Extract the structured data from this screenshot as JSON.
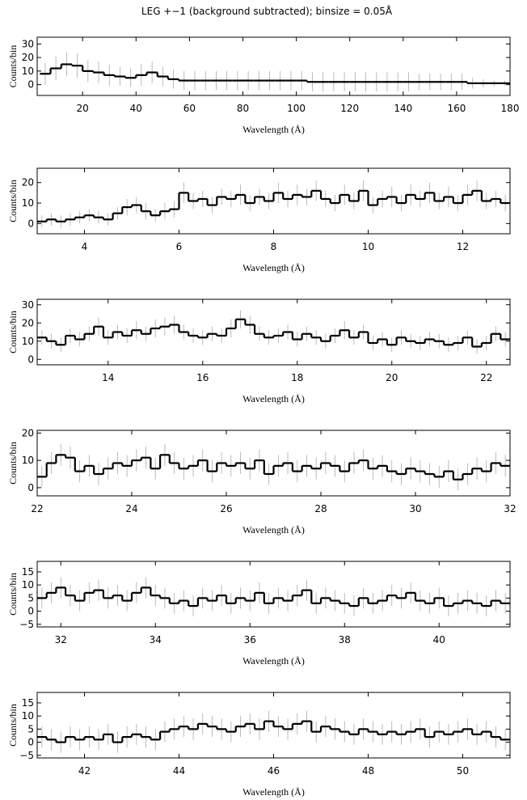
{
  "chart_data": [
    {
      "type": "histogram",
      "title": "LEG +−1 (background subtracted); binsize = 0.05Å",
      "xlabel": "Wavelength (Å)",
      "ylabel": "Counts/bin",
      "xlim": [
        3,
        180
      ],
      "ylim": [
        -8,
        35
      ],
      "xticks": [
        20,
        40,
        60,
        80,
        100,
        120,
        140,
        160,
        180
      ],
      "yticks": [
        0,
        10,
        20,
        30
      ],
      "bins": [
        4,
        8,
        12,
        16,
        20,
        24,
        28,
        32,
        36,
        40,
        44,
        48,
        52,
        56,
        60,
        64,
        68,
        72,
        76,
        80,
        84,
        88,
        92,
        96,
        100,
        104,
        108,
        112,
        116,
        120,
        124,
        128,
        132,
        136,
        140,
        144,
        148,
        152,
        156,
        160,
        164,
        168,
        172,
        176,
        180
      ],
      "values": [
        8,
        12,
        15,
        14,
        10,
        9,
        7,
        6,
        5,
        7,
        9,
        6,
        4,
        3,
        3,
        3,
        3,
        3,
        3,
        3,
        3,
        3,
        3,
        3,
        3,
        2,
        2,
        2,
        2,
        2,
        2,
        2,
        2,
        2,
        2,
        2,
        2,
        2,
        2,
        2,
        1,
        1,
        1,
        1
      ],
      "errors": [
        8,
        9,
        9,
        9,
        8,
        8,
        8,
        7,
        7,
        8,
        8,
        7,
        7,
        7,
        7,
        7,
        7,
        7,
        7,
        7,
        7,
        7,
        7,
        7,
        7,
        7,
        7,
        7,
        7,
        7,
        7,
        7,
        7,
        7,
        7,
        6,
        6,
        6,
        6,
        6,
        4,
        3,
        2,
        2
      ]
    },
    {
      "type": "histogram",
      "xlabel": "Wavelength (Å)",
      "ylabel": "Counts/bin",
      "xlim": [
        3,
        13
      ],
      "ylim": [
        -5,
        27
      ],
      "xticks": [
        4,
        6,
        8,
        10,
        12
      ],
      "yticks": [
        0,
        10,
        20
      ],
      "bins": [
        3,
        3.2,
        3.4,
        3.6,
        3.8,
        4,
        4.2,
        4.4,
        4.6,
        4.8,
        5,
        5.2,
        5.4,
        5.6,
        5.8,
        6,
        6.2,
        6.4,
        6.6,
        6.8,
        7,
        7.2,
        7.4,
        7.6,
        7.8,
        8,
        8.2,
        8.4,
        8.6,
        8.8,
        9,
        9.2,
        9.4,
        9.6,
        9.8,
        10,
        10.2,
        10.4,
        10.6,
        10.8,
        11,
        11.2,
        11.4,
        11.6,
        11.8,
        12,
        12.2,
        12.4,
        12.6,
        12.8,
        13
      ],
      "values": [
        1,
        2,
        1,
        2,
        3,
        4,
        3,
        2,
        5,
        8,
        9,
        6,
        4,
        6,
        7,
        15,
        11,
        12,
        9,
        13,
        12,
        14,
        10,
        13,
        11,
        15,
        12,
        14,
        13,
        16,
        12,
        10,
        14,
        11,
        16,
        9,
        12,
        13,
        10,
        14,
        12,
        15,
        11,
        13,
        10,
        14,
        16,
        11,
        12,
        10
      ],
      "errors": [
        3,
        3,
        3,
        3,
        3,
        3,
        3,
        3,
        3,
        4,
        4,
        4,
        3,
        4,
        4,
        5,
        4,
        4,
        4,
        4,
        4,
        5,
        4,
        4,
        4,
        5,
        4,
        5,
        4,
        5,
        4,
        4,
        5,
        4,
        5,
        4,
        4,
        5,
        4,
        5,
        4,
        5,
        4,
        5,
        4,
        5,
        5,
        4,
        4,
        4
      ]
    },
    {
      "type": "histogram",
      "xlabel": "Wavelength (Å)",
      "ylabel": "Counts/bin",
      "xlim": [
        12.5,
        22.5
      ],
      "ylim": [
        -3,
        33
      ],
      "xticks": [
        14,
        16,
        18,
        20,
        22
      ],
      "yticks": [
        0,
        10,
        20,
        30
      ],
      "bins": [
        12.5,
        12.7,
        12.9,
        13.1,
        13.3,
        13.5,
        13.7,
        13.9,
        14.1,
        14.3,
        14.5,
        14.7,
        14.9,
        15.1,
        15.3,
        15.5,
        15.7,
        15.9,
        16.1,
        16.3,
        16.5,
        16.7,
        16.9,
        17.1,
        17.3,
        17.5,
        17.7,
        17.9,
        18.1,
        18.3,
        18.5,
        18.7,
        18.9,
        19.1,
        19.3,
        19.5,
        19.7,
        19.9,
        20.1,
        20.3,
        20.5,
        20.7,
        20.9,
        21.1,
        21.3,
        21.5,
        21.7,
        21.9,
        22.1,
        22.3,
        22.5
      ],
      "values": [
        12,
        10,
        8,
        13,
        11,
        14,
        18,
        12,
        15,
        13,
        16,
        14,
        17,
        18,
        19,
        15,
        13,
        12,
        14,
        13,
        17,
        22,
        19,
        14,
        12,
        13,
        15,
        11,
        14,
        12,
        10,
        13,
        16,
        12,
        15,
        9,
        11,
        8,
        12,
        10,
        9,
        11,
        10,
        8,
        9,
        12,
        7,
        9,
        14,
        11
      ],
      "errors": [
        4,
        4,
        4,
        4,
        4,
        4,
        5,
        4,
        4,
        4,
        5,
        4,
        5,
        5,
        5,
        4,
        4,
        4,
        4,
        4,
        5,
        5,
        5,
        4,
        4,
        4,
        4,
        4,
        4,
        4,
        4,
        4,
        5,
        4,
        4,
        4,
        4,
        4,
        4,
        4,
        4,
        4,
        4,
        4,
        4,
        4,
        4,
        4,
        4,
        4
      ]
    },
    {
      "type": "histogram",
      "xlabel": "Wavelength (Å)",
      "ylabel": "Counts/bin",
      "xlim": [
        22,
        32
      ],
      "ylim": [
        -3,
        21
      ],
      "xticks": [
        22,
        24,
        26,
        28,
        30,
        32
      ],
      "yticks": [
        0,
        10,
        20
      ],
      "bins": [
        22,
        22.2,
        22.4,
        22.6,
        22.8,
        23,
        23.2,
        23.4,
        23.6,
        23.8,
        24,
        24.2,
        24.4,
        24.6,
        24.8,
        25,
        25.2,
        25.4,
        25.6,
        25.8,
        26,
        26.2,
        26.4,
        26.6,
        26.8,
        27,
        27.2,
        27.4,
        27.6,
        27.8,
        28,
        28.2,
        28.4,
        28.6,
        28.8,
        29,
        29.2,
        29.4,
        29.6,
        29.8,
        30,
        30.2,
        30.4,
        30.6,
        30.8,
        31,
        31.2,
        31.4,
        31.6,
        31.8,
        32
      ],
      "values": [
        4,
        9,
        12,
        11,
        6,
        8,
        5,
        7,
        9,
        8,
        10,
        11,
        7,
        12,
        9,
        7,
        8,
        10,
        6,
        9,
        8,
        9,
        7,
        10,
        5,
        8,
        9,
        6,
        8,
        7,
        9,
        8,
        6,
        9,
        10,
        7,
        8,
        6,
        5,
        7,
        6,
        5,
        4,
        6,
        3,
        5,
        7,
        6,
        9,
        8
      ],
      "errors": [
        4,
        4,
        4,
        4,
        4,
        4,
        4,
        4,
        4,
        4,
        4,
        4,
        4,
        4,
        4,
        4,
        4,
        4,
        4,
        4,
        4,
        4,
        4,
        4,
        4,
        4,
        4,
        4,
        4,
        4,
        4,
        4,
        4,
        4,
        4,
        4,
        4,
        4,
        4,
        4,
        4,
        4,
        4,
        4,
        4,
        4,
        4,
        4,
        4,
        4
      ]
    },
    {
      "type": "histogram",
      "xlabel": "Wavelength (Å)",
      "ylabel": "Counts/bin",
      "xlim": [
        31.5,
        41.5
      ],
      "ylim": [
        -6,
        19
      ],
      "xticks": [
        32,
        34,
        36,
        38,
        40
      ],
      "yticks": [
        {
          "value": -5,
          "label": "−5"
        },
        0,
        5,
        10,
        15
      ],
      "bins": [
        31.5,
        31.7,
        31.9,
        32.1,
        32.3,
        32.5,
        32.7,
        32.9,
        33.1,
        33.3,
        33.5,
        33.7,
        33.9,
        34.1,
        34.3,
        34.5,
        34.7,
        34.9,
        35.1,
        35.3,
        35.5,
        35.7,
        35.9,
        36.1,
        36.3,
        36.5,
        36.7,
        36.9,
        37.1,
        37.3,
        37.5,
        37.7,
        37.9,
        38.1,
        38.3,
        38.5,
        38.7,
        38.9,
        39.1,
        39.3,
        39.5,
        39.7,
        39.9,
        40.1,
        40.3,
        40.5,
        40.7,
        40.9,
        41.1,
        41.3,
        41.5
      ],
      "values": [
        5,
        7,
        9,
        6,
        4,
        7,
        8,
        5,
        6,
        4,
        7,
        9,
        6,
        5,
        3,
        4,
        2,
        5,
        4,
        6,
        3,
        5,
        4,
        7,
        3,
        5,
        4,
        6,
        8,
        3,
        5,
        4,
        3,
        2,
        5,
        3,
        4,
        6,
        5,
        7,
        4,
        3,
        5,
        2,
        3,
        4,
        3,
        2,
        4,
        3
      ],
      "errors": [
        4,
        4,
        4,
        4,
        4,
        4,
        4,
        4,
        4,
        4,
        4,
        4,
        4,
        4,
        4,
        4,
        4,
        4,
        4,
        4,
        4,
        4,
        4,
        4,
        4,
        4,
        4,
        4,
        4,
        4,
        4,
        4,
        4,
        4,
        4,
        4,
        4,
        4,
        4,
        4,
        4,
        4,
        4,
        4,
        4,
        4,
        4,
        4,
        4,
        4
      ]
    },
    {
      "type": "histogram",
      "xlabel": "Wavelength (Å)",
      "ylabel": "Counts/bin",
      "xlim": [
        41,
        51
      ],
      "ylim": [
        -6,
        19
      ],
      "xticks": [
        42,
        44,
        46,
        48,
        50
      ],
      "yticks": [
        {
          "value": -5,
          "label": "−5"
        },
        0,
        5,
        10,
        15
      ],
      "bins": [
        41,
        41.2,
        41.4,
        41.6,
        41.8,
        42,
        42.2,
        42.4,
        42.6,
        42.8,
        43,
        43.2,
        43.4,
        43.6,
        43.8,
        44,
        44.2,
        44.4,
        44.6,
        44.8,
        45,
        45.2,
        45.4,
        45.6,
        45.8,
        46,
        46.2,
        46.4,
        46.6,
        46.8,
        47,
        47.2,
        47.4,
        47.6,
        47.8,
        48,
        48.2,
        48.4,
        48.6,
        48.8,
        49,
        49.2,
        49.4,
        49.6,
        49.8,
        50,
        50.2,
        50.4,
        50.6,
        50.8,
        51
      ],
      "values": [
        2,
        1,
        0,
        2,
        1,
        2,
        1,
        3,
        0,
        2,
        3,
        2,
        1,
        4,
        5,
        6,
        5,
        7,
        6,
        5,
        4,
        6,
        7,
        5,
        8,
        6,
        5,
        7,
        8,
        4,
        6,
        5,
        4,
        3,
        5,
        4,
        3,
        4,
        3,
        4,
        5,
        2,
        4,
        3,
        4,
        5,
        3,
        4,
        2,
        1
      ],
      "errors": [
        4,
        4,
        4,
        4,
        4,
        4,
        4,
        4,
        4,
        4,
        4,
        4,
        4,
        4,
        4,
        4,
        4,
        4,
        4,
        4,
        4,
        4,
        4,
        4,
        4,
        4,
        4,
        4,
        4,
        4,
        4,
        4,
        4,
        4,
        4,
        4,
        4,
        4,
        4,
        4,
        4,
        4,
        4,
        4,
        4,
        4,
        4,
        4,
        4,
        4
      ]
    }
  ]
}
